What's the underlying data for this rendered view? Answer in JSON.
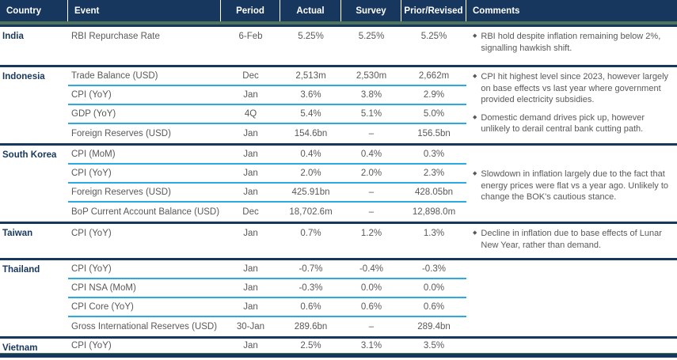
{
  "ui": {
    "bullet_glyph": "◆"
  },
  "colors": {
    "header_bg": "#17375E",
    "accent_green": "#4F7457",
    "separator_navy": "#17375E",
    "row_underline_cyan": "#2BA9E0",
    "row_text": "#595959",
    "country_text": "#17375E"
  },
  "header": {
    "columns": [
      "Country",
      "Event",
      "Period",
      "Actual",
      "Survey",
      "Prior/Revised",
      "Comments"
    ]
  },
  "groups": [
    {
      "country": "India",
      "rows": [
        {
          "event": "RBI Repurchase Rate",
          "period": "6-Feb",
          "actual": "5.25%",
          "survey": "5.25%",
          "prior": "5.25%"
        }
      ],
      "comments": [
        "RBI hold despite inflation remaining below 2%, signalling hawkish shift."
      ]
    },
    {
      "country": "Indonesia",
      "rows": [
        {
          "event": "Trade Balance (USD)",
          "period": "Dec",
          "actual": "2,513m",
          "survey": "2,530m",
          "prior": "2,662m"
        },
        {
          "event": "CPI (YoY)",
          "period": "Jan",
          "actual": "3.6%",
          "survey": "3.8%",
          "prior": "2.9%"
        },
        {
          "event": "GDP (YoY)",
          "period": "4Q",
          "actual": "5.4%",
          "survey": "5.1%",
          "prior": "5.0%"
        },
        {
          "event": "Foreign Reserves (USD)",
          "period": "Jan",
          "actual": "154.6bn",
          "survey": "–",
          "prior": "156.5bn"
        }
      ],
      "comments": [
        "CPI hit highest level since 2023, however largely on base effects vs last year where government provided electricity subsidies.",
        "Domestic demand drives pick up, however unlikely to derail central bank cutting path."
      ]
    },
    {
      "country": "South Korea",
      "rows": [
        {
          "event": "CPI (MoM)",
          "period": "Jan",
          "actual": "0.4%",
          "survey": "0.4%",
          "prior": "0.3%"
        },
        {
          "event": "CPI (YoY)",
          "period": "Jan",
          "actual": "2.0%",
          "survey": "2.0%",
          "prior": "2.3%"
        },
        {
          "event": "Foreign Reserves (USD)",
          "period": "Jan",
          "actual": "425.91bn",
          "survey": "–",
          "prior": "428.05bn"
        },
        {
          "event": "BoP Current Account Balance (USD)",
          "period": "Dec",
          "actual": "18,702.6m",
          "survey": "–",
          "prior": "12,898.0m"
        }
      ],
      "comments": [
        "Slowdown in inflation largely due to the fact that energy prices were flat vs a year ago. Unlikely to change the BOK's cautious stance."
      ]
    },
    {
      "country": "Taiwan",
      "rows": [
        {
          "event": "CPI (YoY)",
          "period": "Jan",
          "actual": "0.7%",
          "survey": "1.2%",
          "prior": "1.3%"
        }
      ],
      "comments": [
        "Decline in inflation due to base effects of Lunar New Year, rather than demand."
      ]
    },
    {
      "country": "Thailand",
      "rows": [
        {
          "event": "CPI (YoY)",
          "period": "Jan",
          "actual": "-0.7%",
          "survey": "-0.4%",
          "prior": "-0.3%"
        },
        {
          "event": "CPI NSA (MoM)",
          "period": "Jan",
          "actual": "-0.3%",
          "survey": "0.0%",
          "prior": "0.0%"
        },
        {
          "event": "CPI Core (YoY)",
          "period": "Jan",
          "actual": "0.6%",
          "survey": "0.6%",
          "prior": "0.6%"
        },
        {
          "event": "Gross International Reserves (USD)",
          "period": "30-Jan",
          "actual": "289.6bn",
          "survey": "–",
          "prior": "289.4bn"
        }
      ],
      "comments": []
    },
    {
      "country": "Vietnam",
      "rows": [
        {
          "event": "CPI (YoY)",
          "period": "Jan",
          "actual": "2.5%",
          "survey": "3.1%",
          "prior": "3.5%"
        }
      ],
      "comments": []
    }
  ]
}
